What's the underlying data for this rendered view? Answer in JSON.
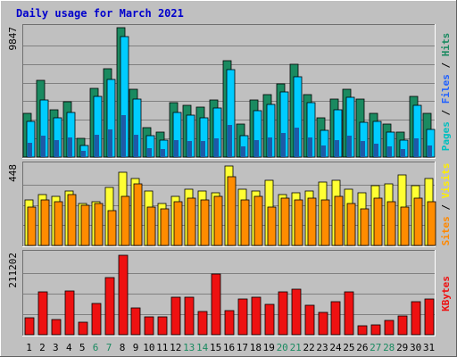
{
  "chart_data": {
    "type": "bar",
    "title": "Daily usage for March 2021",
    "categories": [
      "1",
      "2",
      "3",
      "4",
      "5",
      "6",
      "7",
      "8",
      "9",
      "10",
      "11",
      "12",
      "13",
      "14",
      "15",
      "16",
      "17",
      "18",
      "19",
      "20",
      "21",
      "22",
      "23",
      "24",
      "25",
      "26",
      "27",
      "28",
      "29",
      "30",
      "31"
    ],
    "weekend_days": [
      "6",
      "7",
      "13",
      "14",
      "20",
      "21",
      "27",
      "28"
    ],
    "panels": [
      {
        "id": "pages-files-hits",
        "max_label": "9847",
        "ymax": 9847,
        "grid": true,
        "right_labels": [
          {
            "text": "Pages",
            "color": "#00bfbf"
          },
          {
            "text": "Files",
            "color": "#2060ff"
          },
          {
            "text": "Hits",
            "color": "#1a8a60"
          }
        ],
        "series": [
          {
            "name": "Hits",
            "color": "#1a8a60",
            "values": [
              3300,
              5800,
              3600,
              4200,
              1400,
              5200,
              6700,
              9800,
              5100,
              2200,
              1900,
              4100,
              3900,
              3800,
              4300,
              7300,
              2500,
              4300,
              4700,
              5500,
              7000,
              4700,
              3000,
              4400,
              5100,
              4400,
              3300,
              2500,
              1900,
              4600,
              3300
            ]
          },
          {
            "name": "Files",
            "color": "#00ccff",
            "values": [
              2700,
              4300,
              3000,
              3400,
              900,
              4600,
              5900,
              9100,
              4400,
              1600,
              1300,
              3400,
              3200,
              3000,
              3700,
              6600,
              1600,
              3500,
              4000,
              4900,
              6100,
              4100,
              2000,
              3600,
              4500,
              2600,
              2700,
              1900,
              1300,
              3900,
              2100
            ]
          },
          {
            "name": "Pages",
            "color": "#1e5aa8",
            "values": [
              1100,
              1600,
              1300,
              1500,
              500,
              1700,
              2100,
              3200,
              1700,
              700,
              600,
              1300,
              1200,
              1200,
              1400,
              2400,
              800,
              1300,
              1500,
              1800,
              2200,
              1500,
              900,
              1300,
              1600,
              1200,
              1000,
              800,
              600,
              1400,
              900
            ]
          }
        ]
      },
      {
        "id": "sites-visits",
        "max_label": "448",
        "ymax": 448,
        "grid": true,
        "right_labels": [
          {
            "text": "Sites",
            "color": "#ff8800"
          },
          {
            "text": "Visits",
            "color": "#ffee00"
          }
        ],
        "series": [
          {
            "name": "Visits",
            "color": "#ffff33",
            "values": [
              250,
              280,
              270,
              300,
              230,
              240,
              320,
              405,
              370,
              300,
              230,
              270,
              310,
              300,
              290,
              440,
              310,
              300,
              360,
              280,
              290,
              300,
              350,
              360,
              310,
              290,
              330,
              340,
              390,
              330,
              370
            ]
          },
          {
            "name": "Sites",
            "color": "#ff8c00",
            "values": [
              210,
              250,
              240,
              280,
              220,
              230,
              190,
              270,
              340,
              210,
              200,
              240,
              260,
              250,
              270,
              380,
              250,
              270,
              210,
              260,
              250,
              260,
              250,
              270,
              230,
              200,
              260,
              240,
              210,
              260,
              240
            ]
          }
        ]
      },
      {
        "id": "kbytes",
        "max_label": "211202",
        "ymax": 211202,
        "grid": true,
        "right_labels": [
          {
            "text": "KBytes",
            "color": "#ee1111"
          }
        ],
        "series": [
          {
            "name": "KBytes",
            "color": "#ee1111",
            "values": [
              44000,
              110000,
              38000,
              112000,
              32000,
              80000,
              148000,
              205000,
              68000,
              46000,
              46000,
              97000,
              96000,
              59000,
              157000,
              63000,
              92000,
              97000,
              79000,
              110000,
              118000,
              76000,
              58000,
              86000,
              110000,
              22000,
              25000,
              37000,
              49000,
              84000,
              92000
            ]
          }
        ]
      }
    ]
  }
}
